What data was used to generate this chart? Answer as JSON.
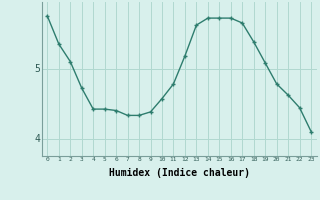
{
  "x": [
    0,
    1,
    2,
    3,
    4,
    5,
    6,
    7,
    8,
    9,
    10,
    11,
    12,
    13,
    14,
    15,
    16,
    17,
    18,
    19,
    20,
    21,
    22,
    23
  ],
  "y": [
    5.75,
    5.35,
    5.1,
    4.72,
    4.42,
    4.42,
    4.4,
    4.33,
    4.33,
    4.38,
    4.57,
    4.78,
    5.18,
    5.62,
    5.72,
    5.72,
    5.72,
    5.65,
    5.38,
    5.08,
    4.78,
    4.62,
    4.44,
    4.1
  ],
  "line_color": "#2e7d6e",
  "marker": "+",
  "marker_size": 3.5,
  "marker_lw": 1.0,
  "bg_color": "#d8f0ec",
  "grid_color": "#b0d8d0",
  "xlabel": "Humidex (Indice chaleur)",
  "xlabel_fontsize": 7,
  "ytick_labels": [
    "4",
    "5"
  ],
  "ytick_positions": [
    4.0,
    5.0
  ],
  "xlim": [
    -0.5,
    23.5
  ],
  "ylim": [
    3.75,
    5.95
  ]
}
